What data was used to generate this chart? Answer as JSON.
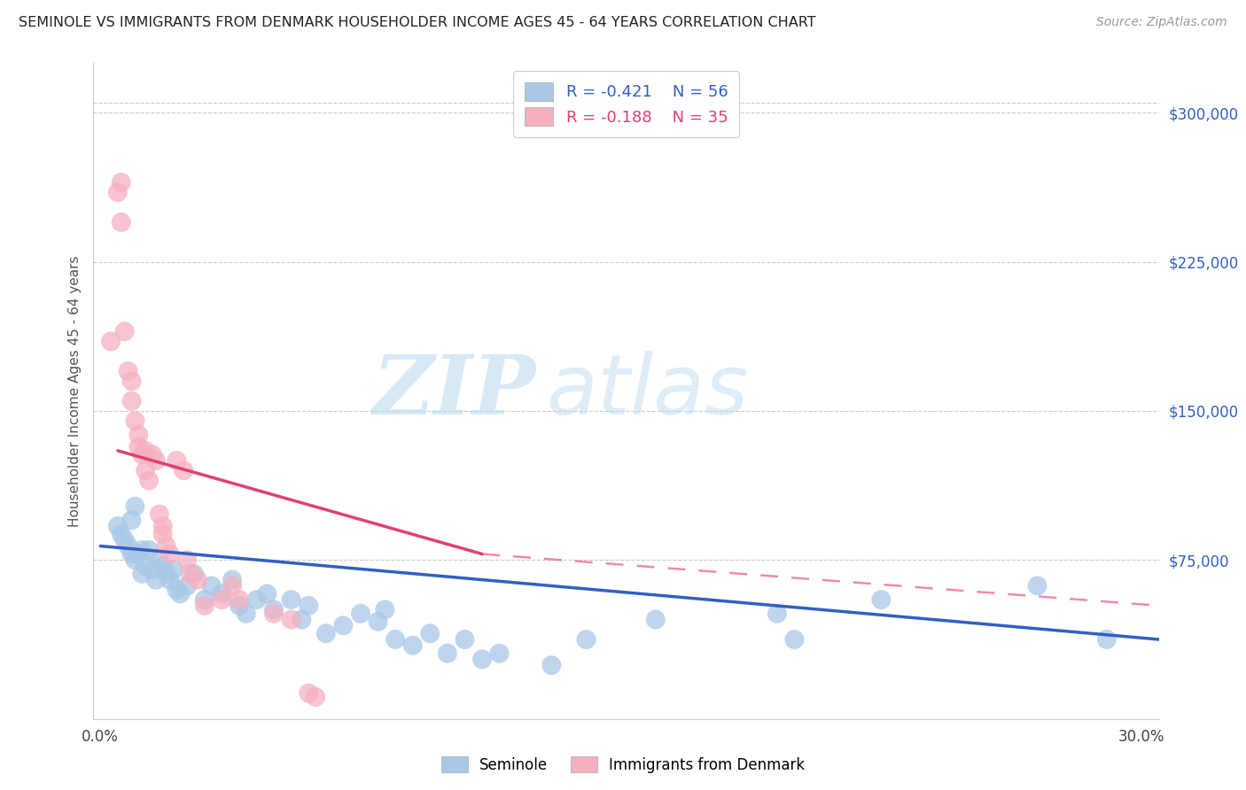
{
  "title": "SEMINOLE VS IMMIGRANTS FROM DENMARK HOUSEHOLDER INCOME AGES 45 - 64 YEARS CORRELATION CHART",
  "source": "Source: ZipAtlas.com",
  "ylabel": "Householder Income Ages 45 - 64 years",
  "right_ytick_labels": [
    "$75,000",
    "$150,000",
    "$225,000",
    "$300,000"
  ],
  "right_ytick_vals": [
    75000,
    150000,
    225000,
    300000
  ],
  "ylim": [
    -5000,
    325000
  ],
  "xlim": [
    -0.002,
    0.305
  ],
  "legend_blue_r": "-0.421",
  "legend_blue_n": "56",
  "legend_pink_r": "-0.188",
  "legend_pink_n": "35",
  "blue_scatter_color": "#a8c8e8",
  "pink_scatter_color": "#f5b0c0",
  "blue_line_color": "#3060c0",
  "pink_line_color": "#e04070",
  "grid_color": "#cccccc",
  "blue_scatter": [
    [
      0.005,
      92000
    ],
    [
      0.006,
      88000
    ],
    [
      0.007,
      85000
    ],
    [
      0.008,
      82000
    ],
    [
      0.009,
      95000
    ],
    [
      0.009,
      78000
    ],
    [
      0.01,
      102000
    ],
    [
      0.01,
      75000
    ],
    [
      0.011,
      78000
    ],
    [
      0.012,
      80000
    ],
    [
      0.012,
      68000
    ],
    [
      0.013,
      72000
    ],
    [
      0.014,
      80000
    ],
    [
      0.015,
      70000
    ],
    [
      0.016,
      65000
    ],
    [
      0.017,
      75000
    ],
    [
      0.018,
      72000
    ],
    [
      0.019,
      68000
    ],
    [
      0.02,
      65000
    ],
    [
      0.021,
      70000
    ],
    [
      0.022,
      60000
    ],
    [
      0.023,
      58000
    ],
    [
      0.025,
      62000
    ],
    [
      0.027,
      68000
    ],
    [
      0.03,
      55000
    ],
    [
      0.032,
      62000
    ],
    [
      0.035,
      58000
    ],
    [
      0.038,
      65000
    ],
    [
      0.04,
      52000
    ],
    [
      0.042,
      48000
    ],
    [
      0.045,
      55000
    ],
    [
      0.048,
      58000
    ],
    [
      0.05,
      50000
    ],
    [
      0.055,
      55000
    ],
    [
      0.058,
      45000
    ],
    [
      0.06,
      52000
    ],
    [
      0.065,
      38000
    ],
    [
      0.07,
      42000
    ],
    [
      0.075,
      48000
    ],
    [
      0.08,
      44000
    ],
    [
      0.082,
      50000
    ],
    [
      0.085,
      35000
    ],
    [
      0.09,
      32000
    ],
    [
      0.095,
      38000
    ],
    [
      0.1,
      28000
    ],
    [
      0.105,
      35000
    ],
    [
      0.11,
      25000
    ],
    [
      0.115,
      28000
    ],
    [
      0.13,
      22000
    ],
    [
      0.14,
      35000
    ],
    [
      0.16,
      45000
    ],
    [
      0.195,
      48000
    ],
    [
      0.2,
      35000
    ],
    [
      0.225,
      55000
    ],
    [
      0.27,
      62000
    ],
    [
      0.29,
      35000
    ]
  ],
  "pink_scatter": [
    [
      0.003,
      185000
    ],
    [
      0.005,
      260000
    ],
    [
      0.006,
      265000
    ],
    [
      0.006,
      245000
    ],
    [
      0.007,
      190000
    ],
    [
      0.008,
      170000
    ],
    [
      0.009,
      165000
    ],
    [
      0.009,
      155000
    ],
    [
      0.01,
      145000
    ],
    [
      0.011,
      138000
    ],
    [
      0.011,
      132000
    ],
    [
      0.012,
      128000
    ],
    [
      0.013,
      130000
    ],
    [
      0.013,
      120000
    ],
    [
      0.014,
      115000
    ],
    [
      0.015,
      128000
    ],
    [
      0.016,
      125000
    ],
    [
      0.017,
      98000
    ],
    [
      0.018,
      92000
    ],
    [
      0.018,
      88000
    ],
    [
      0.019,
      82000
    ],
    [
      0.02,
      78000
    ],
    [
      0.022,
      125000
    ],
    [
      0.024,
      120000
    ],
    [
      0.025,
      75000
    ],
    [
      0.026,
      68000
    ],
    [
      0.028,
      65000
    ],
    [
      0.03,
      52000
    ],
    [
      0.035,
      55000
    ],
    [
      0.038,
      62000
    ],
    [
      0.04,
      55000
    ],
    [
      0.05,
      48000
    ],
    [
      0.055,
      45000
    ],
    [
      0.06,
      8000
    ],
    [
      0.062,
      6000
    ]
  ],
  "blue_trendline": [
    [
      0.0,
      82000
    ],
    [
      0.305,
      35000
    ]
  ],
  "pink_trendline_solid": [
    [
      0.005,
      130000
    ],
    [
      0.11,
      78000
    ]
  ],
  "pink_trendline_dashed": [
    [
      0.11,
      78000
    ],
    [
      0.305,
      52000
    ]
  ]
}
